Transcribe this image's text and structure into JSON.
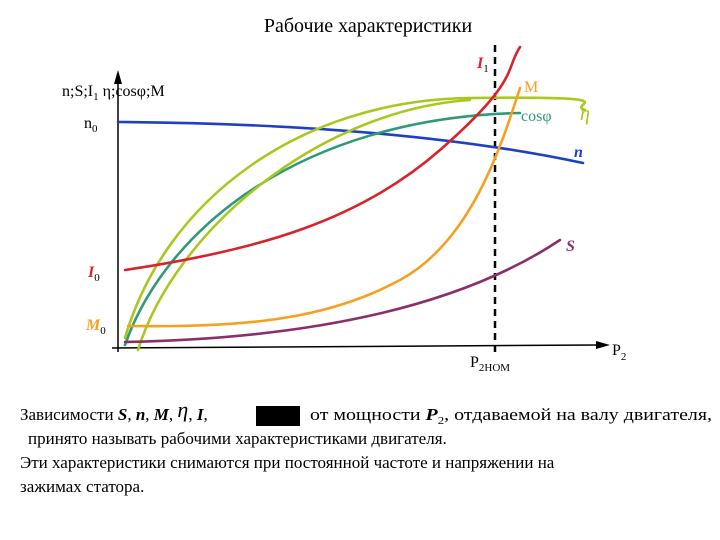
{
  "title": "Рабочие характеристики",
  "axis": {
    "y_label": {
      "a": "n;S;I",
      "sub": "1",
      "b": " η;cosφ;M"
    },
    "x_label": {
      "main": "P",
      "sub": "2"
    },
    "x_mark": {
      "main": "P",
      "sub": "2НОМ"
    }
  },
  "curves": {
    "n0": {
      "main": "n",
      "sub": "0"
    },
    "I0": {
      "main": "I",
      "sub": "0"
    },
    "M0": {
      "main": "M",
      "sub": "0"
    },
    "I1": {
      "main": "I",
      "sub": "1"
    },
    "M": "M",
    "cos": "cosφ",
    "eta": "η",
    "n": "n",
    "S": "S"
  },
  "text": {
    "line1": {
      "s1": "Зависимости ",
      "S": "S",
      ", ": ", ",
      "n": "n",
      "c2": ", ",
      "M": "M",
      "c3": ", ",
      "eta": "η",
      "c4": ", ",
      "I": "I",
      "c5": ",",
      "s2": "от мощности ",
      "P": "P",
      "sub": "2",
      "s3": ", отдаваемой на валу двигателя,"
    },
    "line2": "принято называть рабочими характеристиками двигателя.",
    "line3": "Эти характеристики снимаются при постоянной частоте и напряжении на",
    "line4": "зажимах статора."
  }
}
